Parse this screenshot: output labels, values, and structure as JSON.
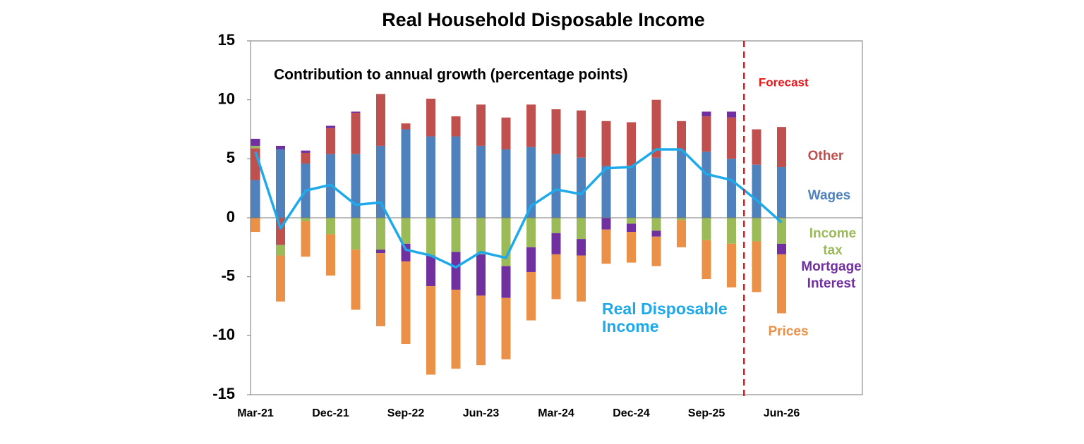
{
  "chart_data": {
    "type": "bar",
    "title": "Real Household Disposable Income",
    "subtitle": "Contribution to annual growth (percentage points)",
    "annotation": "Forecast",
    "forecast_index": 20,
    "categories": [
      "Mar-21",
      null,
      null,
      "Dec-21",
      null,
      null,
      "Sep-22",
      null,
      null,
      "Jun-23",
      null,
      null,
      "Mar-24",
      null,
      null,
      "Dec-24",
      null,
      null,
      "Sep-25",
      null,
      null,
      "Jun-26"
    ],
    "ylim": [
      -15,
      15
    ],
    "yticks": [
      -15,
      -10,
      -5,
      0,
      5,
      10,
      15
    ],
    "series": [
      {
        "name": "Wages",
        "color": "#4f81bd",
        "values": [
          3.2,
          5.8,
          4.6,
          5.4,
          5.4,
          6.1,
          7.5,
          6.9,
          6.9,
          6.1,
          5.8,
          6.0,
          5.4,
          5.1,
          4.4,
          4.4,
          5.1,
          5.7,
          5.6,
          5.0,
          4.5,
          4.3
        ]
      },
      {
        "name": "Other",
        "color": "#c0504d",
        "values": [
          2.7,
          -2.3,
          0.9,
          2.2,
          3.5,
          4.4,
          0.5,
          3.2,
          1.7,
          3.5,
          2.7,
          3.6,
          3.8,
          4.0,
          3.8,
          3.7,
          4.9,
          2.5,
          3.0,
          3.5,
          3.0,
          3.4
        ]
      },
      {
        "name": "Income tax",
        "color": "#9bbb59",
        "values": [
          0.2,
          -0.9,
          -0.3,
          -1.4,
          -2.7,
          -2.7,
          -2.2,
          -3.2,
          -2.9,
          -3.1,
          -4.1,
          -2.5,
          -1.3,
          -1.8,
          0,
          -0.5,
          -1.1,
          -0.2,
          -1.9,
          -2.2,
          -2.0,
          -2.2
        ]
      },
      {
        "name": "Mortgage Interest",
        "color": "#7030a0",
        "values": [
          0.6,
          0.3,
          0.2,
          0.2,
          0.1,
          -0.3,
          -1.5,
          -2.6,
          -3.2,
          -3.5,
          -2.7,
          -2.1,
          -1.8,
          -1.4,
          -1.0,
          -0.7,
          -0.5,
          0,
          0.4,
          0.5,
          0,
          -0.9
        ]
      },
      {
        "name": "Prices",
        "color": "#ea9147",
        "values": [
          -1.2,
          -3.9,
          -3.0,
          -3.5,
          -5.1,
          -6.2,
          -7.0,
          -7.5,
          -6.7,
          -5.9,
          -5.2,
          -4.1,
          -3.8,
          -3.9,
          -2.9,
          -2.6,
          -2.5,
          -2.3,
          -3.3,
          -3.7,
          -4.3,
          -5.0
        ]
      }
    ],
    "line": {
      "name": "Real Disposable Income",
      "color": "#1eaaea",
      "values": [
        5.6,
        -0.9,
        2.3,
        2.8,
        1.1,
        1.3,
        -2.7,
        -3.2,
        -4.2,
        -2.9,
        -3.4,
        1.0,
        2.4,
        2.0,
        4.2,
        4.3,
        5.8,
        5.8,
        3.7,
        3.2,
        1.5,
        -0.4
      ]
    }
  }
}
